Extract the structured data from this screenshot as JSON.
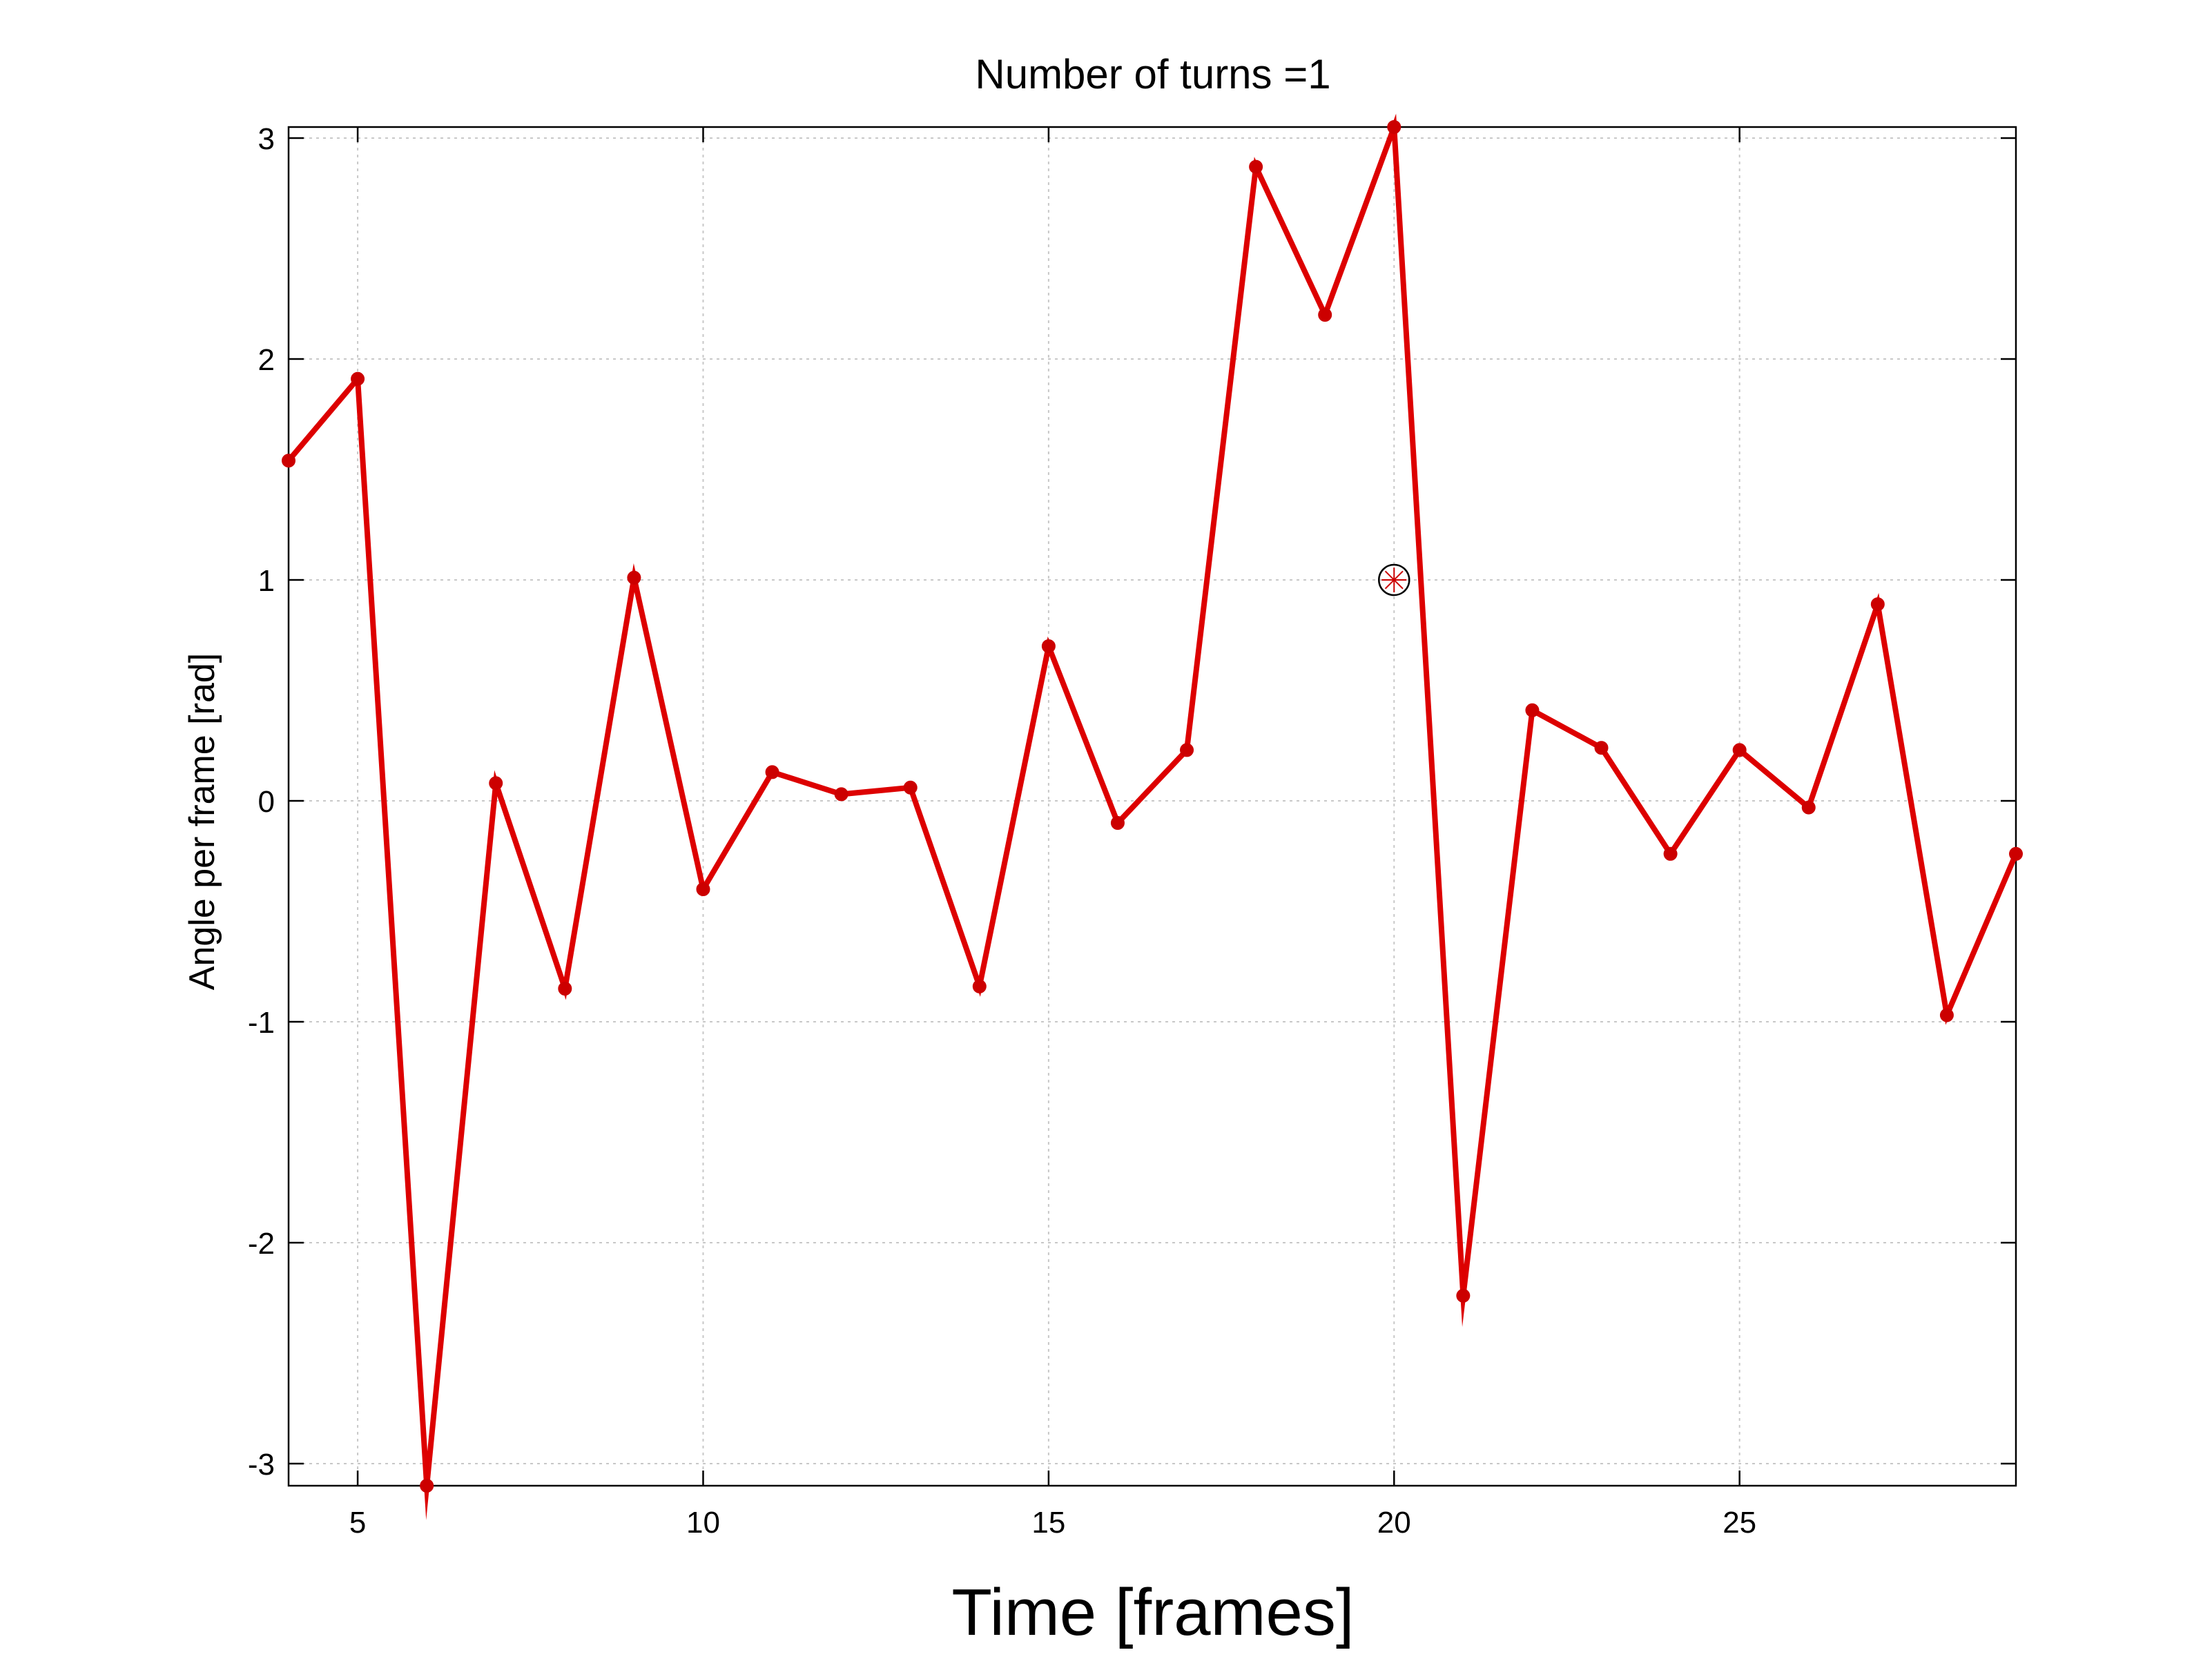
{
  "chart_data": {
    "type": "line",
    "title": "Number of turns =1",
    "xlabel": "Time [frames]",
    "ylabel": "Angle  per frame [rad]",
    "xlim": [
      4,
      29
    ],
    "ylim": [
      -3.1,
      3.05
    ],
    "xticks": [
      5,
      10,
      15,
      20,
      25
    ],
    "yticks": [
      -3,
      -2,
      -1,
      0,
      1,
      2,
      3
    ],
    "grid": true,
    "line_color": "#dd0000",
    "marker_color": "#cc0000",
    "series": [
      {
        "x": [
          4,
          5,
          6,
          7,
          8,
          9,
          10,
          11,
          12,
          13,
          14,
          15,
          16,
          17,
          18,
          19,
          20,
          21,
          22,
          23,
          24,
          25,
          26,
          27,
          28,
          29
        ],
        "y": [
          1.54,
          1.91,
          -3.1,
          0.08,
          -0.85,
          1.01,
          -0.4,
          0.13,
          0.03,
          0.06,
          -0.84,
          0.7,
          -0.1,
          0.23,
          2.87,
          2.2,
          3.05,
          -2.24,
          0.41,
          0.24,
          -0.24,
          0.23,
          -0.03,
          0.89,
          -0.97,
          -0.24
        ]
      }
    ],
    "annotations": [
      {
        "type": "circled-asterisk-marker",
        "x": 20,
        "y": 1.0,
        "color": "#000000",
        "inner_color": "#cc0000"
      }
    ]
  }
}
